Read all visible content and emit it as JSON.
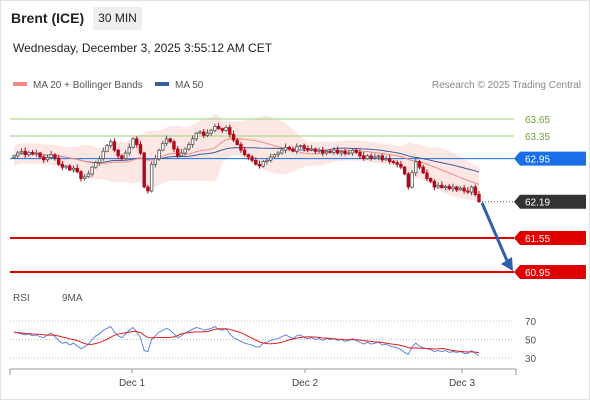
{
  "header": {
    "instrument": "Brent (ICE)",
    "interval": "30 MIN",
    "datetime": "Wednesday, December 3, 2025 3:55:12 AM CET"
  },
  "legend": {
    "ma20_label": "MA 20 + Bollinger Bands",
    "ma50_label": "MA 50",
    "credit": "Research © 2025 Trading Central",
    "rsi_label": "RSI",
    "rsi_ma_label": "9MA"
  },
  "colors": {
    "ma20": "#f08c84",
    "ma50": "#3d5a99",
    "band_fill": "#fde3e1",
    "pivot": "#1a6fe6",
    "support": "#e00000",
    "resistance_green": "#9bd37a",
    "last_price": "#333333",
    "arrow": "#2f5fa8",
    "bull": "#555555",
    "bear": "#b00a1a",
    "rsi": "#4f79d9",
    "rsi_ma": "#e02020"
  },
  "chart_data": [
    {
      "type": "candlestick",
      "title": "Brent (ICE)",
      "y_range": [
        60.5,
        64.0
      ],
      "x_tick_labels": [
        "Dec 1",
        "Dec 2",
        "Dec 3"
      ],
      "levels": [
        {
          "value": 63.65,
          "label": "63.65",
          "kind": "resistance"
        },
        {
          "value": 63.35,
          "label": "63.35",
          "kind": "resistance"
        },
        {
          "value": 62.95,
          "label": "62.95",
          "kind": "pivot"
        },
        {
          "value": 62.19,
          "label": "62.19",
          "kind": "last"
        },
        {
          "value": 61.55,
          "label": "61.55",
          "kind": "support"
        },
        {
          "value": 60.95,
          "label": "60.95",
          "kind": "support"
        }
      ],
      "close": [
        63.0,
        63.05,
        63.08,
        63.02,
        63.06,
        63.03,
        63.05,
        62.98,
        62.93,
        62.97,
        63.02,
        62.96,
        62.85,
        62.8,
        62.82,
        62.75,
        62.78,
        62.72,
        62.6,
        62.63,
        62.68,
        62.8,
        62.88,
        62.95,
        63.08,
        63.18,
        63.25,
        63.1,
        63.0,
        62.95,
        63.05,
        63.15,
        63.3,
        63.2,
        63.05,
        62.45,
        62.38,
        62.85,
        62.95,
        63.1,
        63.22,
        63.3,
        63.25,
        63.12,
        63.0,
        63.05,
        63.12,
        63.2,
        63.3,
        63.4,
        63.42,
        63.36,
        63.4,
        63.45,
        63.52,
        63.48,
        63.45,
        63.5,
        63.38,
        63.28,
        63.2,
        63.1,
        63.02,
        62.98,
        62.92,
        62.85,
        62.82,
        62.9,
        62.92,
        62.98,
        63.02,
        63.05,
        63.1,
        63.15,
        63.12,
        63.08,
        63.16,
        63.18,
        63.13,
        63.1,
        63.12,
        63.08,
        63.1,
        63.05,
        63.08,
        63.06,
        63.1,
        63.05,
        63.08,
        63.04,
        63.05,
        63.1,
        63.06,
        63.0,
        62.95,
        63.0,
        62.96,
        62.98,
        63.0,
        62.93,
        62.95,
        62.9,
        62.88,
        62.85,
        62.8,
        62.68,
        62.45,
        62.7,
        62.9,
        62.8,
        62.7,
        62.6,
        62.55,
        62.45,
        62.48,
        62.44,
        62.46,
        62.42,
        62.45,
        62.4,
        62.43,
        62.38,
        62.36,
        62.45,
        62.32,
        62.19
      ],
      "rsi": [
        58,
        57,
        56,
        55,
        56,
        54,
        55,
        53,
        52,
        55,
        57,
        53,
        49,
        46,
        47,
        44,
        46,
        43,
        40,
        42,
        45,
        50,
        54,
        56,
        60,
        62,
        64,
        58,
        54,
        52,
        56,
        60,
        63,
        58,
        52,
        38,
        37,
        50,
        54,
        58,
        60,
        62,
        60,
        56,
        52,
        54,
        57,
        59,
        61,
        63,
        62,
        60,
        61,
        62,
        64,
        61,
        60,
        62,
        56,
        52,
        50,
        48,
        46,
        45,
        44,
        42,
        42,
        46,
        47,
        49,
        50,
        51,
        53,
        55,
        53,
        51,
        54,
        55,
        52,
        51,
        52,
        50,
        51,
        49,
        51,
        50,
        51,
        49,
        50,
        48,
        49,
        51,
        49,
        47,
        45,
        47,
        45,
        46,
        47,
        44,
        45,
        43,
        42,
        41,
        39,
        36,
        34,
        42,
        46,
        43,
        41,
        40,
        39,
        37,
        38,
        37,
        38,
        36,
        37,
        36,
        37,
        35,
        35,
        38,
        35,
        33
      ],
      "rsi_ticks": [
        70,
        50,
        30
      ]
    }
  ]
}
